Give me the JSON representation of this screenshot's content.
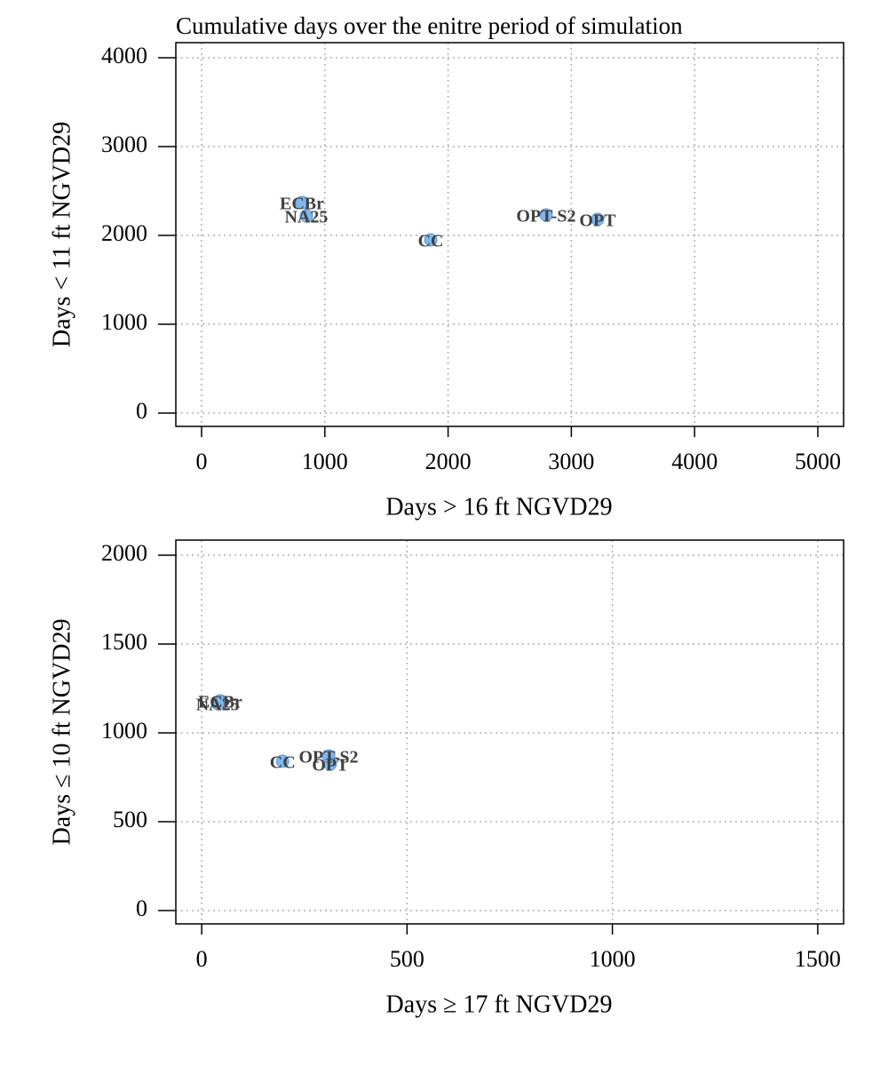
{
  "chart_data": [
    {
      "type": "scatter",
      "title": "Cumulative days over the enitre period of simulation",
      "xlabel": "Days > 16 ft NGVD29",
      "ylabel": "Days < 11 ft NGVD29",
      "labels": [
        "ECBr",
        "NA25",
        "CC",
        "OPT-S2",
        "OPT"
      ],
      "x": [
        814,
        850,
        1859,
        2795,
        3213
      ],
      "values": [
        2370,
        2220,
        1950,
        2230,
        2180
      ],
      "color": "#7fb8f0",
      "xlim": [
        -209,
        5209
      ],
      "ylim": [
        -150,
        4170
      ],
      "xticks": [
        0,
        1000,
        2000,
        3000,
        4000,
        5000
      ],
      "yticks": [
        0,
        1000,
        2000,
        3000,
        4000
      ],
      "grid": true
    },
    {
      "type": "scatter",
      "xlabel": "Days ≥ 17 ft NGVD29",
      "ylabel": "Days ≤ 10 ft NGVD29",
      "labels": [
        "ECBr",
        "NA25",
        "CC",
        "OPT-S2",
        "OPT"
      ],
      "x": [
        45,
        39,
        197,
        309,
        313
      ],
      "values": [
        1180,
        1165,
        840,
        870,
        825
      ],
      "color": "#7fb8f0",
      "xlim": [
        -63,
        1563
      ],
      "ylim": [
        -75,
        2085
      ],
      "xticks": [
        0,
        500,
        1000,
        1500
      ],
      "yticks": [
        0,
        500,
        1000,
        1500,
        2000
      ],
      "grid": true
    }
  ]
}
